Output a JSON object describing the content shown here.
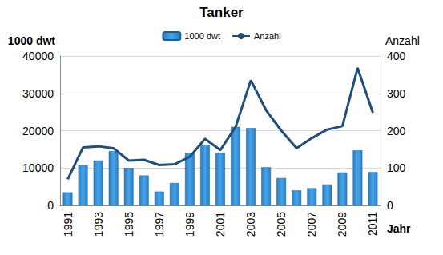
{
  "chart_data": {
    "type": "bar",
    "title": "Tanker",
    "categories": [
      "1991",
      null,
      "1993",
      null,
      "1995",
      null,
      "1997",
      null,
      "1999",
      null,
      "2001",
      null,
      "2003",
      null,
      "2005",
      null,
      "2007",
      null,
      "2009",
      null,
      "2011"
    ],
    "xlabel": "Jahr",
    "ylabel": "1000 dwt",
    "y2label": "Anzahl",
    "series": [
      {
        "name": "1000 dwt",
        "type": "bar",
        "color": "#2a7fc7",
        "values": [
          3500,
          10700,
          12000,
          14500,
          10000,
          8000,
          3700,
          6000,
          14000,
          16200,
          14000,
          21000,
          20700,
          10200,
          7300,
          4000,
          4600,
          5600,
          8800,
          14700,
          8900
        ]
      },
      {
        "name": "Anzahl",
        "type": "line",
        "axis": "y2",
        "color": "#1f4e79",
        "marker": "none",
        "line_style": "solid",
        "values": [
          70,
          155,
          158,
          153,
          120,
          122,
          108,
          110,
          130,
          178,
          148,
          210,
          335,
          255,
          200,
          153,
          180,
          203,
          212,
          368,
          248
        ]
      }
    ],
    "ylim": [
      0,
      40000
    ],
    "yticks": [
      0,
      10000,
      20000,
      30000,
      40000
    ],
    "y2lim": [
      0,
      400
    ],
    "y2ticks": [
      0,
      100,
      200,
      300,
      400
    ],
    "grid": true,
    "legend": "top"
  }
}
